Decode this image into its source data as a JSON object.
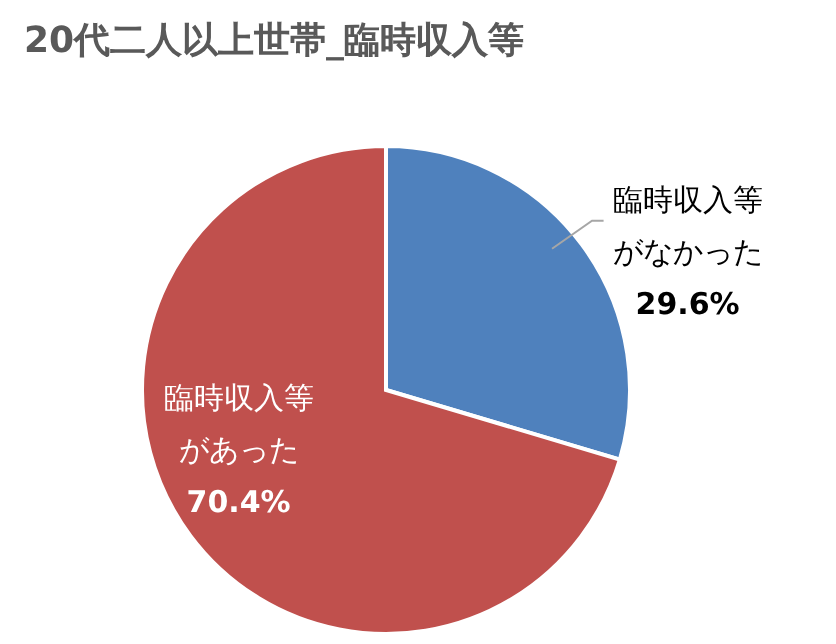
{
  "chart_data": {
    "type": "pie",
    "title": "20代二人以上世帯_臨時収入等",
    "categories": [
      "臨時収入等がなかった",
      "臨時収入等があった"
    ],
    "values": [
      29.6,
      70.4
    ],
    "colors": [
      "#4f81bd",
      "#c0504d"
    ],
    "value_labels": [
      "29.6%",
      "70.4%"
    ],
    "legend": false
  }
}
